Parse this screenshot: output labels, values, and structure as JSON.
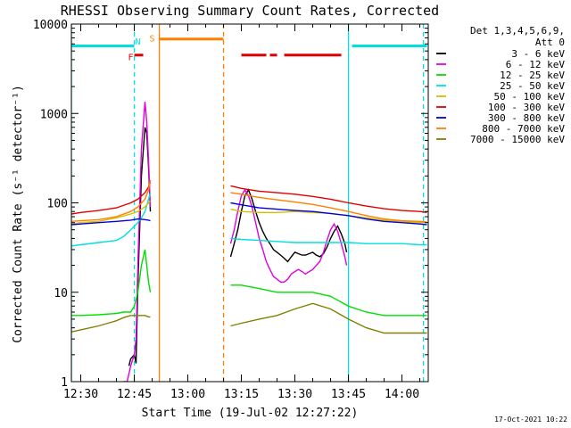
{
  "chart_data": {
    "type": "line",
    "title": "RHESSI Observing Summary Count Rates, Corrected",
    "xlabel": "Start Time (19-Jul-02 12:27:22)",
    "ylabel": "Corrected Count Rate (s⁻¹ detector⁻¹)",
    "yscale": "log",
    "ylim": [
      1,
      10000
    ],
    "xlim_minutes_after_start": [
      0,
      100
    ],
    "xlim": [
      "12:27:22",
      "14:07:22"
    ],
    "y_ticks": [
      1,
      10,
      100,
      1000,
      10000
    ],
    "y_tick_labels": [
      "1",
      "10",
      "100",
      "1000",
      "10000"
    ],
    "x_ticks": [
      "12:30",
      "12:45",
      "13:00",
      "13:15",
      "13:30",
      "13:45",
      "14:00"
    ],
    "legend_header": [
      "Det 1,3,4,5,6,9,",
      "Att 0"
    ],
    "legend_position": "right",
    "footer_date": "17-Oct-2021 10:22",
    "series": [
      {
        "name": "3 - 6 keV",
        "color": "#000000",
        "x": [
          "12:43:30",
          "12:44",
          "12:45",
          "12:45:30",
          "12:46",
          "12:47",
          "12:48",
          "12:48:30",
          "12:49",
          "12:49:30",
          "13:12",
          "13:13",
          "13:14",
          "13:15",
          "13:16",
          "13:17",
          "13:18",
          "13:19",
          "13:20",
          "13:21",
          "13:22",
          "13:23",
          "13:24",
          "13:25",
          "13:26",
          "13:27",
          "13:28",
          "13:29",
          "13:30",
          "13:31",
          "13:32",
          "13:33",
          "13:34",
          "13:35",
          "13:36",
          "13:37",
          "13:38",
          "13:39",
          "13:40",
          "13:41",
          "13:42",
          "13:43",
          "13:44",
          "13:44:30"
        ],
        "y": [
          1.5,
          1.8,
          2,
          1.6,
          12,
          200,
          700,
          600,
          250,
          80,
          25,
          35,
          50,
          80,
          120,
          140,
          110,
          80,
          60,
          48,
          40,
          35,
          30,
          28,
          26,
          24,
          22,
          25,
          28,
          27,
          26,
          26,
          27,
          28,
          26,
          25,
          27,
          32,
          40,
          48,
          55,
          45,
          35,
          28
        ]
      },
      {
        "name": "6 - 12 keV",
        "color": "#e000e0",
        "x": [
          "12:42",
          "12:43",
          "12:44",
          "12:45",
          "12:45:30",
          "12:46",
          "12:47",
          "12:48",
          "12:48:30",
          "12:49",
          "12:49:30",
          "13:12",
          "13:13",
          "13:14",
          "13:15",
          "13:16",
          "13:17",
          "13:18",
          "13:19",
          "13:20",
          "13:21",
          "13:22",
          "13:23",
          "13:24",
          "13:25",
          "13:26",
          "13:27",
          "13:28",
          "13:29",
          "13:30",
          "13:31",
          "13:32",
          "13:33",
          "13:34",
          "13:35",
          "13:36",
          "13:37",
          "13:38",
          "13:39",
          "13:40",
          "13:41",
          "13:42",
          "13:43",
          "13:44",
          "13:44:30"
        ],
        "y": [
          1,
          1,
          1.5,
          2,
          3,
          20,
          400,
          1350,
          800,
          300,
          90,
          35,
          50,
          80,
          120,
          140,
          120,
          90,
          60,
          40,
          30,
          22,
          18,
          15,
          14,
          13,
          13,
          14,
          16,
          17,
          18,
          17,
          16,
          17,
          18,
          20,
          22,
          28,
          38,
          50,
          58,
          48,
          35,
          25,
          20
        ]
      },
      {
        "name": "12 - 25 keV",
        "color": "#00e000",
        "x": [
          "12:27:22",
          "12:30",
          "12:35",
          "12:40",
          "12:42",
          "12:44",
          "12:45",
          "12:46",
          "12:47",
          "12:48",
          "12:49",
          "12:49:30",
          "13:12",
          "13:15",
          "13:20",
          "13:25",
          "13:30",
          "13:35",
          "13:40",
          "13:45",
          "13:50",
          "13:55",
          "14:00",
          "14:05",
          "14:07"
        ],
        "y": [
          5.5,
          5.5,
          5.6,
          5.8,
          6,
          6,
          7,
          10,
          20,
          30,
          13,
          10,
          12,
          12,
          11,
          10,
          10,
          10,
          9,
          7,
          6,
          5.5,
          5.5,
          5.5,
          5.5
        ]
      },
      {
        "name": "25 - 50 keV",
        "color": "#00e0e0",
        "x": [
          "12:27:22",
          "12:30",
          "12:35",
          "12:40",
          "12:42",
          "12:44",
          "12:46",
          "12:47",
          "12:48",
          "12:49",
          "12:49:30",
          "13:12",
          "13:15",
          "13:20",
          "13:25",
          "13:30",
          "13:35",
          "13:40",
          "13:45",
          "13:50",
          "13:55",
          "14:00",
          "14:05",
          "14:07"
        ],
        "y": [
          33,
          34,
          36,
          38,
          42,
          50,
          60,
          68,
          80,
          110,
          130,
          40,
          39,
          38,
          37,
          36,
          36,
          36,
          36,
          35,
          35,
          35,
          34,
          34
        ]
      },
      {
        "name": "50 - 100 keV",
        "color": "#d0c000",
        "x": [
          "12:27:22",
          "12:30",
          "12:35",
          "12:40",
          "12:44",
          "12:46",
          "12:48",
          "12:49",
          "12:49:30",
          "13:12",
          "13:15",
          "13:20",
          "13:25",
          "13:30",
          "13:35",
          "13:40",
          "13:45",
          "13:50",
          "13:55",
          "14:00",
          "14:05",
          "14:07"
        ],
        "y": [
          58,
          60,
          62,
          68,
          75,
          80,
          90,
          100,
          105,
          85,
          80,
          78,
          78,
          80,
          78,
          76,
          72,
          68,
          64,
          62,
          60,
          60
        ]
      },
      {
        "name": "100 - 300 keV",
        "color": "#e00000",
        "x": [
          "12:27:22",
          "12:30",
          "12:35",
          "12:40",
          "12:44",
          "12:46",
          "12:48",
          "12:49",
          "12:49:30",
          "13:12",
          "13:15",
          "13:20",
          "13:25",
          "13:30",
          "13:35",
          "13:40",
          "13:45",
          "13:50",
          "13:55",
          "14:00",
          "14:05",
          "14:07"
        ],
        "y": [
          75,
          78,
          82,
          88,
          100,
          110,
          130,
          150,
          170,
          155,
          145,
          135,
          130,
          125,
          118,
          110,
          100,
          92,
          86,
          82,
          80,
          78
        ]
      },
      {
        "name": "300 - 800 keV",
        "color": "#0000e0",
        "x": [
          "12:27:22",
          "12:30",
          "12:35",
          "12:40",
          "12:44",
          "12:46",
          "12:48",
          "12:49",
          "12:49:30",
          "13:12",
          "13:15",
          "13:20",
          "13:25",
          "13:30",
          "13:35",
          "13:40",
          "13:45",
          "13:50",
          "13:55",
          "14:00",
          "14:05",
          "14:07"
        ],
        "y": [
          57,
          58,
          60,
          62,
          64,
          66,
          65,
          64,
          63,
          100,
          95,
          88,
          85,
          82,
          80,
          76,
          72,
          66,
          62,
          60,
          58,
          57
        ]
      },
      {
        "name": "800 - 7000 keV",
        "color": "#ff8000",
        "x": [
          "12:27:22",
          "12:30",
          "12:35",
          "12:40",
          "12:44",
          "12:46",
          "12:48",
          "12:49",
          "12:49:30",
          "13:12",
          "13:15",
          "13:20",
          "13:25",
          "13:30",
          "13:35",
          "13:40",
          "13:45",
          "13:50",
          "13:55",
          "14:00",
          "14:05",
          "14:07"
        ],
        "y": [
          62,
          63,
          65,
          70,
          80,
          90,
          110,
          140,
          180,
          130,
          125,
          115,
          108,
          102,
          96,
          88,
          80,
          72,
          66,
          63,
          62,
          61
        ]
      },
      {
        "name": "7000 - 15000 keV",
        "color": "#808000",
        "x": [
          "12:27:22",
          "12:30",
          "12:35",
          "12:40",
          "12:42",
          "12:44",
          "12:46",
          "12:48",
          "12:49",
          "12:49:30",
          "13:12",
          "13:15",
          "13:20",
          "13:25",
          "13:30",
          "13:35",
          "13:40",
          "13:45",
          "13:50",
          "13:55",
          "14:00",
          "14:05",
          "14:07"
        ],
        "y": [
          3.6,
          3.8,
          4.2,
          4.8,
          5.2,
          5.5,
          5.5,
          5.5,
          5.3,
          5.3,
          4.2,
          4.5,
          5,
          5.5,
          6.5,
          7.5,
          6.5,
          5,
          4,
          3.5,
          3.5,
          3.5,
          3.5
        ]
      }
    ],
    "flags": [
      {
        "label": "",
        "color": "#00e0e0",
        "y": 5700,
        "ranges": [
          [
            "12:27:22",
            "12:45"
          ],
          [
            "13:46",
            "14:07"
          ]
        ]
      },
      {
        "label": "F",
        "color": "#e00000",
        "y": 4500,
        "ranges": [
          [
            "12:45",
            "12:47:30"
          ],
          [
            "13:15",
            "13:22"
          ],
          [
            "13:23",
            "13:25"
          ],
          [
            "13:27",
            "13:43"
          ]
        ]
      },
      {
        "label": "N",
        "color": "#00e0e0",
        "y": 6300,
        "ranges": []
      },
      {
        "label": "S",
        "color": "#ff8000",
        "y": 6800,
        "ranges": [
          [
            "12:52",
            "13:10"
          ]
        ]
      }
    ],
    "vlines": [
      {
        "x": "12:27:22",
        "color": "#00e0e0",
        "dashed": false
      },
      {
        "x": "12:45",
        "color": "#00e0e0",
        "dashed": true
      },
      {
        "x": "12:52",
        "color": "#ff8000",
        "dashed": false
      },
      {
        "x": "13:10",
        "color": "#ff8000",
        "dashed": true
      },
      {
        "x": "13:45",
        "color": "#00e0e0",
        "dashed": false
      },
      {
        "x": "14:06",
        "color": "#00e0e0",
        "dashed": true
      }
    ]
  }
}
